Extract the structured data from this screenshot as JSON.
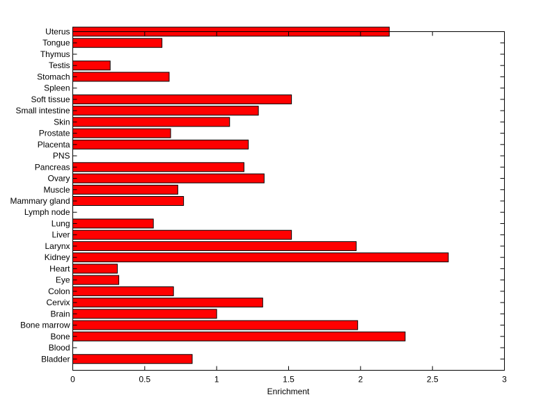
{
  "chart_data": {
    "type": "bar",
    "orientation": "horizontal",
    "title": "",
    "xlabel": "Enrichment",
    "ylabel": "",
    "xlim": [
      0,
      3
    ],
    "ylim": [
      0,
      30
    ],
    "xticks": [
      0,
      0.5,
      1,
      1.5,
      2,
      2.5,
      3
    ],
    "xtick_labels": [
      "0",
      "0.5",
      "1",
      "1.5",
      "2",
      "2.5",
      "3"
    ],
    "grid": false,
    "bar_color": "#ff0000",
    "categories": [
      "Bladder",
      "Blood",
      "Bone",
      "Bone marrow",
      "Brain",
      "Cervix",
      "Colon",
      "Eye",
      "Heart",
      "Kidney",
      "Larynx",
      "Liver",
      "Lung",
      "Lymph node",
      "Mammary gland",
      "Muscle",
      "Ovary",
      "Pancreas",
      "PNS",
      "Placenta",
      "Prostate",
      "Skin",
      "Small intestine",
      "Soft tissue",
      "Spleen",
      "Stomach",
      "Testis",
      "Thymus",
      "Tongue",
      "Uterus"
    ],
    "values": [
      0.83,
      0,
      2.31,
      1.98,
      1.0,
      1.32,
      0.7,
      0.32,
      0.31,
      2.61,
      1.97,
      1.52,
      0.56,
      0,
      0.77,
      0.73,
      1.33,
      1.19,
      0,
      1.22,
      0.68,
      1.09,
      1.29,
      1.52,
      0,
      0.67,
      0.26,
      0,
      0.62,
      2.2
    ]
  }
}
